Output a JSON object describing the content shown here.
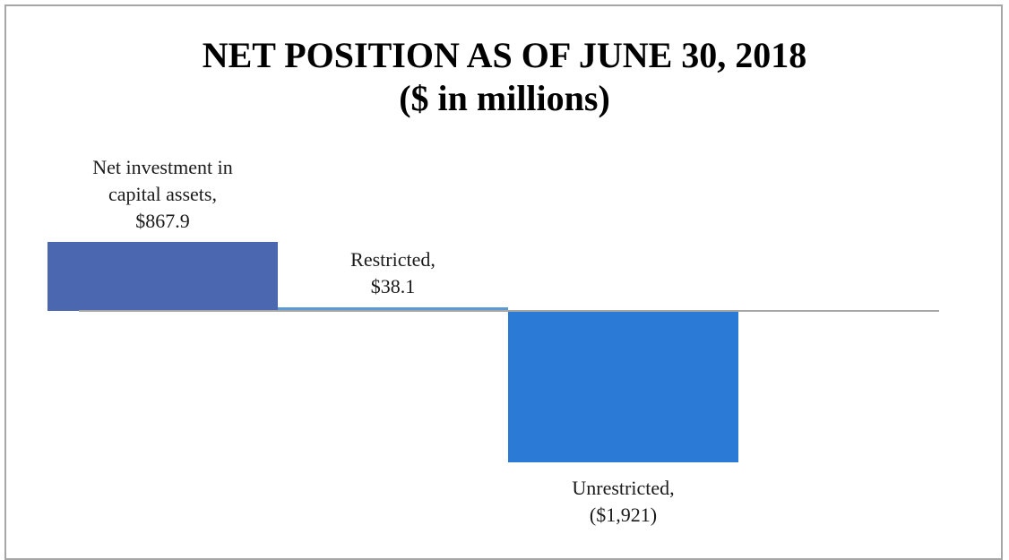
{
  "chart_data": {
    "type": "bar",
    "title": "NET POSITION AS OF JUNE 30, 2018",
    "subtitle": "($ in millions)",
    "categories": [
      "Net investment in capital assets,",
      "Restricted,",
      "Unrestricted,"
    ],
    "values": [
      867.9,
      38.1,
      -1921
    ],
    "value_labels": [
      "$867.9",
      "$38.1",
      "($1,921)"
    ],
    "colors": [
      "#4a67b0",
      "#5b9bd5",
      "#2b7bd6"
    ],
    "ylim": [
      -2900,
      2200
    ]
  }
}
